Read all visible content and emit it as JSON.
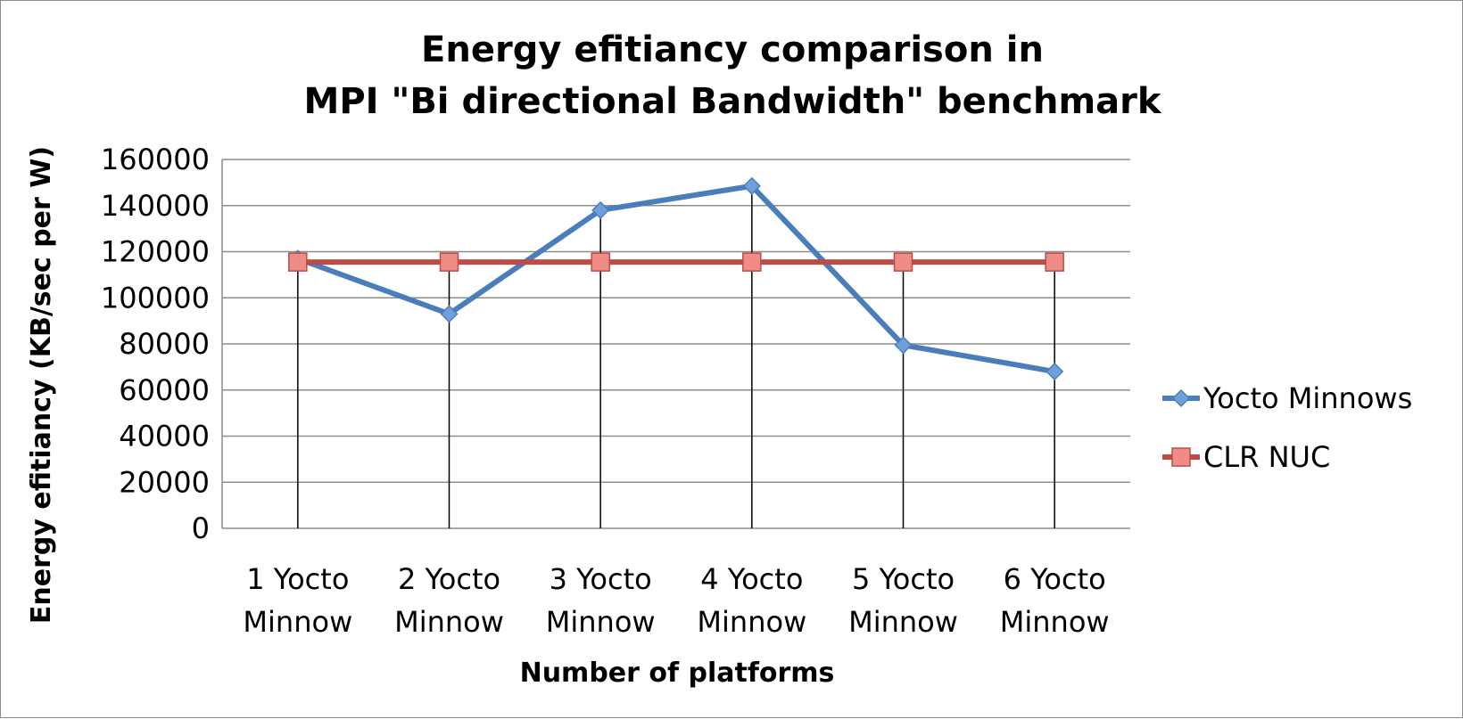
{
  "chart_data": {
    "type": "line",
    "title_lines": [
      "Energy efitiancy comparison in",
      "MPI \"Bi directional Bandwidth\" benchmark"
    ],
    "xlabel": "Number of platforms",
    "ylabel": "Energy efitiancy (KB/sec per W)",
    "categories": [
      [
        "1 Yocto",
        "Minnow"
      ],
      [
        "2 Yocto",
        "Minnow"
      ],
      [
        "3 Yocto",
        "Minnow"
      ],
      [
        "4 Yocto",
        "Minnow"
      ],
      [
        "5 Yocto",
        "Minnow"
      ],
      [
        "6 Yocto",
        "Minnow"
      ]
    ],
    "ylim": [
      0,
      160000
    ],
    "yticks": [
      "0",
      "20000",
      "40000",
      "60000",
      "80000",
      "100000",
      "120000",
      "140000",
      "160000"
    ],
    "grid": "horizontal",
    "drop_lines": true,
    "legend_position": "right",
    "series": [
      {
        "name": "Yocto Minnows",
        "marker": "diamond",
        "color": "#4a7ebb",
        "marker_color": "#6fa0dc",
        "values": [
          117000,
          93000,
          138000,
          148500,
          79500,
          68000
        ]
      },
      {
        "name": "CLR NUC",
        "marker": "square",
        "color": "#be4b48",
        "marker_color": "#f08c86",
        "values": [
          115500,
          115500,
          115500,
          115500,
          115500,
          115500
        ]
      }
    ]
  }
}
